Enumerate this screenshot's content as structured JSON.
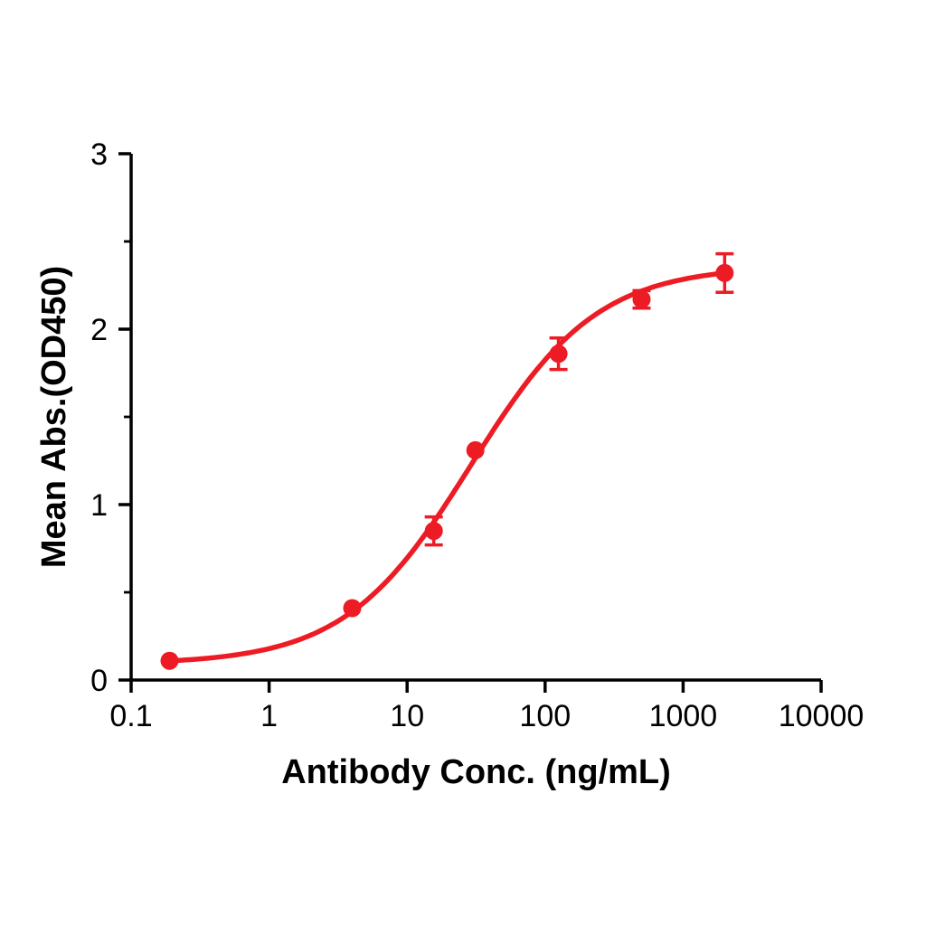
{
  "figure": {
    "background": "#ffffff",
    "axis_color": "#000000",
    "text_color": "#000000"
  },
  "chart_data": {
    "type": "scatter",
    "title": "",
    "xlabel": "Antibody Conc. (ng/mL)",
    "ylabel": "Mean Abs.(OD450)",
    "x_scale": "log10",
    "xlim": [
      0.1,
      10000
    ],
    "ylim": [
      0,
      3
    ],
    "x_ticks": [
      0.1,
      1,
      10,
      100,
      1000,
      10000
    ],
    "x_tick_labels": [
      "0.1",
      "1",
      "10",
      "100",
      "1000",
      "10000"
    ],
    "y_ticks": [
      0,
      1,
      2,
      3
    ],
    "y_tick_labels": [
      "0",
      "1",
      "2",
      "3"
    ],
    "y_minor_ticks": [
      0.5,
      1.5,
      2.5
    ],
    "grid": false,
    "legend": false,
    "series": [
      {
        "color": "#ed1c24",
        "marker": "circle",
        "x": [
          0.19,
          4,
          15.6,
          31.25,
          125,
          500,
          2000
        ],
        "y": [
          0.11,
          0.41,
          0.85,
          1.31,
          1.86,
          2.17,
          2.32
        ],
        "y_err": [
          0,
          0,
          0.08,
          0,
          0.09,
          0.05,
          0.11
        ],
        "fit": {
          "type": "4PL-sigmoid",
          "bottom": 0.09,
          "top": 2.36,
          "ec50": 29,
          "hill": 0.95,
          "x_range": [
            0.19,
            2000
          ]
        }
      }
    ]
  }
}
